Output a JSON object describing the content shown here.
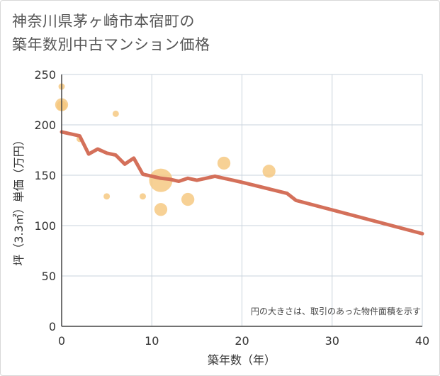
{
  "title_line1": "神奈川県茅ヶ崎市本宿町の",
  "title_line2": "築年数別中古マンション価格",
  "chart_data": {
    "type": "scatter",
    "xlabel": "築年数（年）",
    "ylabel": "坪（3.3㎡）単価（万円）",
    "xlim": [
      0,
      40
    ],
    "ylim": [
      0,
      250
    ],
    "xticks": [
      "0",
      "10",
      "20",
      "30",
      "40"
    ],
    "yticks": [
      "0",
      "50",
      "100",
      "150",
      "200",
      "250"
    ],
    "grid": true,
    "note": "円の大きさは、取引のあった物件面積を示す",
    "bubble_color": "#f5c77e",
    "line_color": "#d4705a",
    "bubbles": [
      {
        "x": 0,
        "y": 238,
        "size": 1
      },
      {
        "x": 0,
        "y": 220,
        "size": 3
      },
      {
        "x": 0,
        "y": 219,
        "size": 2
      },
      {
        "x": 2,
        "y": 186,
        "size": 1
      },
      {
        "x": 6,
        "y": 211,
        "size": 1
      },
      {
        "x": 5,
        "y": 129,
        "size": 1
      },
      {
        "x": 9,
        "y": 129,
        "size": 1
      },
      {
        "x": 11,
        "y": 145,
        "size": 7
      },
      {
        "x": 11,
        "y": 116,
        "size": 3
      },
      {
        "x": 14,
        "y": 126,
        "size": 3
      },
      {
        "x": 18,
        "y": 162,
        "size": 3
      },
      {
        "x": 23,
        "y": 154,
        "size": 3
      }
    ],
    "trend": {
      "name": "",
      "x": [
        0,
        2,
        3,
        4,
        5,
        6,
        7,
        8,
        9,
        10,
        11,
        12,
        13,
        14,
        15,
        16,
        17,
        18,
        19,
        20,
        25,
        26,
        40
      ],
      "y": [
        193,
        189,
        171,
        176,
        172,
        170,
        161,
        167,
        151,
        149,
        147,
        146,
        144,
        147,
        145,
        147,
        149,
        147,
        145,
        143,
        132,
        125,
        92
      ]
    }
  }
}
